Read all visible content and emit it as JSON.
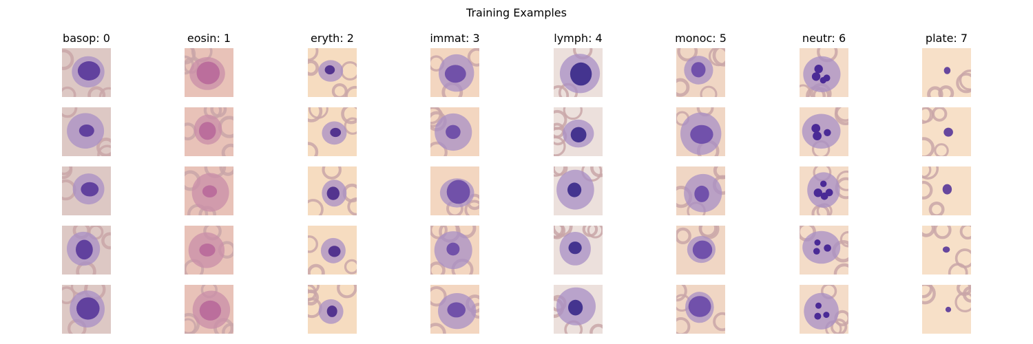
{
  "figure": {
    "title": "Training Examples",
    "classes": [
      {
        "label": "basop: 0",
        "tint": "#ddc8c4",
        "cell_color": "#5a3a9a"
      },
      {
        "label": "eosin: 1",
        "tint": "#e8c2b8",
        "cell_color": "#b86a9a"
      },
      {
        "label": "eryth: 2",
        "tint": "#f6dcc0",
        "cell_color": "#4a2a8a"
      },
      {
        "label": "immat: 3",
        "tint": "#f3d6c0",
        "cell_color": "#6a4aa6"
      },
      {
        "label": "lymph: 4",
        "tint": "#ece0dc",
        "cell_color": "#3a2a8a"
      },
      {
        "label": "monoc: 5",
        "tint": "#f0d6c4",
        "cell_color": "#6a4aa8"
      },
      {
        "label": "neutr: 6",
        "tint": "#f4dcc8",
        "cell_color": "#4a2a96"
      },
      {
        "label": "plate: 7",
        "tint": "#f7e0c8",
        "cell_color": "#5a3a9a"
      }
    ],
    "rows": 5,
    "colors": {
      "background_peach": "#fde2c4",
      "rbc": "#c9a6a8",
      "cytoplasm": "#a88fc6",
      "nucleus": "#4b2d8f"
    }
  }
}
